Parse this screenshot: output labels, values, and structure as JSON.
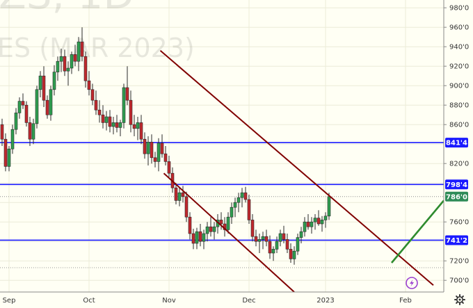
{
  "chart_data": {
    "type": "candlestick",
    "watermark": {
      "line1": "ZS, 1D",
      "line2": "ES (MAR 2023)"
    },
    "y_range": [
      688,
      988
    ],
    "y_ticks": [
      {
        "value": 980,
        "label": "980'0"
      },
      {
        "value": 960,
        "label": "960'0"
      },
      {
        "value": 940,
        "label": "940'0"
      },
      {
        "value": 920,
        "label": "920'0"
      },
      {
        "value": 900,
        "label": "900'0"
      },
      {
        "value": 880,
        "label": "880'0"
      },
      {
        "value": 860,
        "label": "860'0"
      },
      {
        "value": 820,
        "label": "820'0"
      },
      {
        "value": 760,
        "label": "760'0"
      },
      {
        "value": 720,
        "label": "720'0"
      },
      {
        "value": 700,
        "label": "700'0"
      }
    ],
    "x_labels": [
      {
        "bar": 2,
        "label": "Sep"
      },
      {
        "bar": 25,
        "label": "Oct"
      },
      {
        "bar": 48,
        "label": "Nov"
      },
      {
        "bar": 71,
        "label": "Dec"
      },
      {
        "bar": 93,
        "label": "2023"
      },
      {
        "bar": 116,
        "label": "Feb"
      }
    ],
    "bars": [
      [
        860,
        866,
        838,
        845
      ],
      [
        845,
        851,
        812,
        817
      ],
      [
        817,
        838,
        812,
        835
      ],
      [
        835,
        860,
        830,
        855
      ],
      [
        855,
        877,
        850,
        872
      ],
      [
        872,
        888,
        866,
        884
      ],
      [
        884,
        892,
        876,
        880
      ],
      [
        880,
        884,
        858,
        862
      ],
      [
        862,
        868,
        838,
        845
      ],
      [
        845,
        866,
        840,
        861
      ],
      [
        861,
        900,
        856,
        896
      ],
      [
        896,
        915,
        888,
        910
      ],
      [
        910,
        920,
        878,
        885
      ],
      [
        885,
        890,
        866,
        870
      ],
      [
        870,
        900,
        864,
        896
      ],
      [
        896,
        921,
        890,
        914
      ],
      [
        914,
        930,
        905,
        925
      ],
      [
        925,
        938,
        914,
        930
      ],
      [
        930,
        937,
        910,
        915
      ],
      [
        915,
        925,
        900,
        918
      ],
      [
        918,
        935,
        912,
        932
      ],
      [
        932,
        942,
        920,
        925
      ],
      [
        925,
        950,
        915,
        945
      ],
      [
        945,
        960,
        925,
        930
      ],
      [
        930,
        935,
        898,
        905
      ],
      [
        905,
        915,
        890,
        896
      ],
      [
        896,
        902,
        880,
        885
      ],
      [
        885,
        895,
        870,
        875
      ],
      [
        875,
        885,
        862,
        870
      ],
      [
        870,
        880,
        856,
        862
      ],
      [
        862,
        874,
        854,
        868
      ],
      [
        868,
        875,
        852,
        858
      ],
      [
        858,
        868,
        850,
        862
      ],
      [
        862,
        870,
        852,
        857
      ],
      [
        857,
        865,
        848,
        862
      ],
      [
        862,
        902,
        856,
        898
      ],
      [
        898,
        920,
        880,
        885
      ],
      [
        885,
        895,
        852,
        860
      ],
      [
        860,
        870,
        848,
        856
      ],
      [
        856,
        868,
        844,
        862
      ],
      [
        862,
        870,
        840,
        845
      ],
      [
        845,
        852,
        825,
        830
      ],
      [
        830,
        848,
        818,
        842
      ],
      [
        842,
        850,
        820,
        826
      ],
      [
        826,
        832,
        816,
        822
      ],
      [
        822,
        846,
        812,
        841
      ],
      [
        841,
        850,
        826,
        830
      ],
      [
        830,
        838,
        818,
        822
      ],
      [
        822,
        828,
        806,
        810
      ],
      [
        810,
        816,
        790,
        795
      ],
      [
        795,
        800,
        778,
        782
      ],
      [
        782,
        795,
        776,
        790
      ],
      [
        790,
        797,
        780,
        786
      ],
      [
        786,
        791,
        760,
        765
      ],
      [
        765,
        770,
        742,
        748
      ],
      [
        748,
        753,
        732,
        738
      ],
      [
        738,
        754,
        732,
        750
      ],
      [
        750,
        758,
        735,
        740
      ],
      [
        740,
        752,
        732,
        748
      ],
      [
        748,
        760,
        740,
        755
      ],
      [
        755,
        765,
        745,
        750
      ],
      [
        750,
        760,
        742,
        755
      ],
      [
        755,
        768,
        748,
        762
      ],
      [
        762,
        770,
        752,
        758
      ],
      [
        758,
        765,
        745,
        752
      ],
      [
        752,
        770,
        748,
        765
      ],
      [
        765,
        780,
        758,
        775
      ],
      [
        775,
        785,
        765,
        780
      ],
      [
        780,
        790,
        770,
        785
      ],
      [
        785,
        795,
        775,
        790
      ],
      [
        790,
        796,
        780,
        783
      ],
      [
        783,
        788,
        758,
        762
      ],
      [
        762,
        768,
        740,
        745
      ],
      [
        745,
        752,
        735,
        740
      ],
      [
        740,
        748,
        728,
        742
      ],
      [
        742,
        750,
        732,
        745
      ],
      [
        745,
        752,
        735,
        740
      ],
      [
        740,
        746,
        722,
        728
      ],
      [
        728,
        735,
        720,
        732
      ],
      [
        732,
        745,
        728,
        740
      ],
      [
        740,
        752,
        735,
        748
      ],
      [
        748,
        756,
        738,
        742
      ],
      [
        742,
        748,
        728,
        732
      ],
      [
        732,
        738,
        718,
        722
      ],
      [
        722,
        735,
        716,
        730
      ],
      [
        730,
        748,
        726,
        744
      ],
      [
        744,
        755,
        738,
        750
      ],
      [
        750,
        765,
        745,
        760
      ],
      [
        760,
        768,
        752,
        755
      ],
      [
        755,
        765,
        748,
        760
      ],
      [
        760,
        768,
        752,
        764
      ],
      [
        764,
        772,
        756,
        758
      ],
      [
        758,
        766,
        750,
        762
      ],
      [
        762,
        770,
        754,
        766
      ],
      [
        766,
        790,
        762,
        786
      ]
    ],
    "horizontal_levels": [
      {
        "value": 841.5,
        "label": "841'4",
        "color": "#1a1aff"
      },
      {
        "value": 798.5,
        "label": "798'4",
        "color": "#1a1aff"
      },
      {
        "value": 741.25,
        "label": "741'2",
        "color": "#1a1aff"
      }
    ],
    "price_line": {
      "value": 786,
      "label": "786'0",
      "color": "#2e8b57"
    },
    "dotted_levels": [
      713
    ],
    "trend_lines": [
      {
        "from": {
          "bar": 45.5,
          "value": 936
        },
        "to": {
          "bar": 124,
          "value": 695
        },
        "color": "#800000"
      },
      {
        "from": {
          "bar": 46.5,
          "value": 810
        },
        "to": {
          "bar": 84,
          "value": 688
        },
        "color": "#800000"
      },
      {
        "from": {
          "bar": 112,
          "value": 718
        },
        "to": {
          "bar": 127,
          "value": 782
        },
        "color": "#2e8b2e"
      }
    ],
    "colors": {
      "up": "#2e9e4f",
      "down": "#c0282d",
      "background": "#fffff4",
      "grid": "#ececd8"
    },
    "grid": true
  },
  "controls": {
    "gear_icon": "gear-icon",
    "lightning_icon": "lightning-icon"
  }
}
